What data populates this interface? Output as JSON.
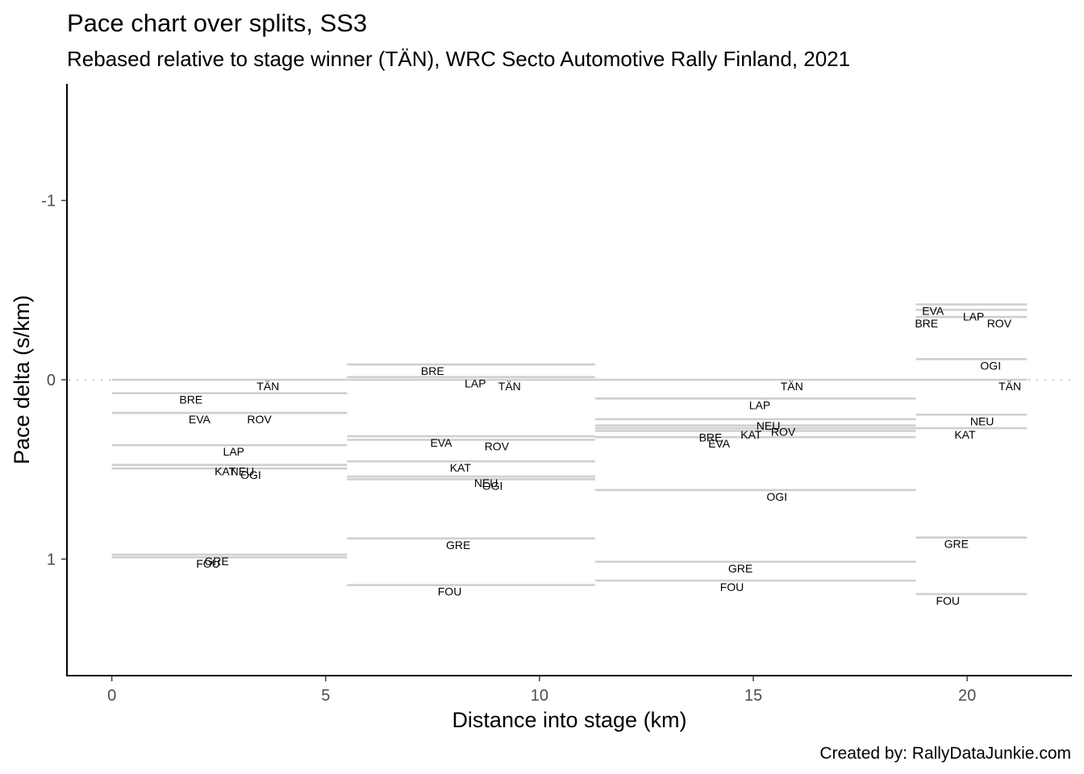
{
  "chart_data": {
    "type": "line",
    "title": "Pace chart over splits, SS3",
    "subtitle": "Rebased relative to stage winner (TÄN), WRC Secto Automotive Rally Finland, 2021",
    "caption": "Created by: RallyDataJunkie.com",
    "xlabel": "Distance into stage (km)",
    "ylabel": "Pace delta (s/km)",
    "xlim": [
      -1.05,
      22.45
    ],
    "ylim": [
      1.65,
      -1.65
    ],
    "y_reversed": true,
    "xticks": [
      0,
      5,
      10,
      15,
      20
    ],
    "xtick_labels": [
      "0",
      "5",
      "10",
      "15",
      "20"
    ],
    "yticks": [
      -1,
      0,
      1
    ],
    "ytick_labels": [
      "-1",
      "0",
      "1"
    ],
    "grid": false,
    "legend": "none",
    "reference_line": {
      "y": 0,
      "style": "dotted",
      "color": "#c8c8c8"
    },
    "segment_color": "#cfcfcf",
    "splits": [
      {
        "start_km": 0.0,
        "end_km": 5.5,
        "drivers": [
          {
            "driver": "TÄN",
            "pace_delta": 0.0,
            "label_km": 3.65
          },
          {
            "driver": "BRE",
            "pace_delta": 0.075,
            "label_km": 1.85
          },
          {
            "driver": "EVA",
            "pace_delta": 0.185,
            "label_km": 2.05
          },
          {
            "driver": "ROV",
            "pace_delta": 0.185,
            "label_km": 3.45
          },
          {
            "driver": "LAP",
            "pace_delta": 0.365,
            "label_km": 2.85
          },
          {
            "driver": "KAT",
            "pace_delta": 0.475,
            "label_km": 2.65
          },
          {
            "driver": "NEU",
            "pace_delta": 0.475,
            "label_km": 3.05
          },
          {
            "driver": "OGI",
            "pace_delta": 0.495,
            "label_km": 3.25
          },
          {
            "driver": "GRE",
            "pace_delta": 0.975,
            "label_km": 2.45
          },
          {
            "driver": "FOU",
            "pace_delta": 0.99,
            "label_km": 2.25
          }
        ]
      },
      {
        "start_km": 5.5,
        "end_km": 11.3,
        "drivers": [
          {
            "driver": "BRE",
            "pace_delta": -0.085,
            "label_km": 7.5
          },
          {
            "driver": "LAP",
            "pace_delta": -0.015,
            "label_km": 8.5
          },
          {
            "driver": "TÄN",
            "pace_delta": 0.0,
            "label_km": 9.3
          },
          {
            "driver": "EVA",
            "pace_delta": 0.315,
            "label_km": 7.7
          },
          {
            "driver": "ROV",
            "pace_delta": 0.335,
            "label_km": 9.0
          },
          {
            "driver": "KAT",
            "pace_delta": 0.455,
            "label_km": 8.15
          },
          {
            "driver": "NEU",
            "pace_delta": 0.54,
            "label_km": 8.75
          },
          {
            "driver": "OGI",
            "pace_delta": 0.555,
            "label_km": 8.9
          },
          {
            "driver": "GRE",
            "pace_delta": 0.885,
            "label_km": 8.1
          },
          {
            "driver": "FOU",
            "pace_delta": 1.145,
            "label_km": 7.9
          }
        ]
      },
      {
        "start_km": 11.3,
        "end_km": 18.8,
        "drivers": [
          {
            "driver": "TÄN",
            "pace_delta": 0.0,
            "label_km": 15.9
          },
          {
            "driver": "LAP",
            "pace_delta": 0.105,
            "label_km": 15.15
          },
          {
            "driver": "NEU",
            "pace_delta": 0.22,
            "label_km": 15.35
          },
          {
            "driver": "ROV",
            "pace_delta": 0.255,
            "label_km": 15.7
          },
          {
            "driver": "KAT",
            "pace_delta": 0.27,
            "label_km": 14.95
          },
          {
            "driver": "BRE",
            "pace_delta": 0.285,
            "label_km": 14.0
          },
          {
            "driver": "EVA",
            "pace_delta": 0.32,
            "label_km": 14.2
          },
          {
            "driver": "OGI",
            "pace_delta": 0.615,
            "label_km": 15.55
          },
          {
            "driver": "GRE",
            "pace_delta": 1.015,
            "label_km": 14.7
          },
          {
            "driver": "FOU",
            "pace_delta": 1.12,
            "label_km": 14.5
          }
        ]
      },
      {
        "start_km": 18.8,
        "end_km": 21.4,
        "drivers": [
          {
            "driver": "EVA",
            "pace_delta": -0.42,
            "label_km": 19.2
          },
          {
            "driver": "LAP",
            "pace_delta": -0.39,
            "label_km": 20.15
          },
          {
            "driver": "BRE",
            "pace_delta": -0.35,
            "label_km": 19.05
          },
          {
            "driver": "ROV",
            "pace_delta": -0.35,
            "label_km": 20.75
          },
          {
            "driver": "OGI",
            "pace_delta": -0.115,
            "label_km": 20.55
          },
          {
            "driver": "TÄN",
            "pace_delta": 0.0,
            "label_km": 21.0
          },
          {
            "driver": "NEU",
            "pace_delta": 0.195,
            "label_km": 20.35
          },
          {
            "driver": "KAT",
            "pace_delta": 0.27,
            "label_km": 19.95
          },
          {
            "driver": "GRE",
            "pace_delta": 0.88,
            "label_km": 19.75
          },
          {
            "driver": "FOU",
            "pace_delta": 1.195,
            "label_km": 19.55
          }
        ]
      }
    ]
  }
}
